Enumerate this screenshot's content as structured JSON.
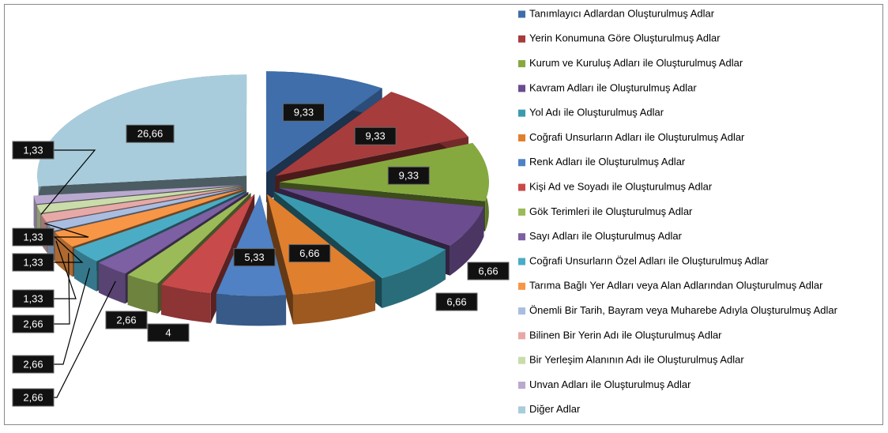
{
  "chart_data": {
    "type": "pie",
    "categories": [
      "Tanımlayıcı Adlardan Oluşturulmuş Adlar",
      "Yerin Konumuna Göre Oluşturulmuş Adlar",
      "Kurum ve Kuruluş Adları ile Oluşturulmuş Adlar",
      "Kavram Adları ile Oluşturulmuş Adlar",
      "Yol Adı ile Oluşturulmuş Adlar",
      "Coğrafi Unsurların Adları ile Oluşturulmuş Adlar",
      "Renk Adları ile Oluşturulmuş Adlar",
      "Kişi Ad ve Soyadı ile Oluşturulmuş Adlar",
      "Gök Terimleri ile Oluşturulmuş Adlar",
      "Sayı Adları ile Oluşturulmuş Adlar",
      "Coğrafi Unsurların Özel Adları ile Oluşturulmuş Adlar",
      "Tarıma Bağlı Yer Adları veya Alan Adlarından Oluşturulmuş Adlar",
      "Önemli Bir Tarih, Bayram veya Muharebe Adıyla Oluşturulmuş Adlar",
      "Bilinen Bir Yerin Adı ile Oluşturulmuş Adlar",
      "Bir Yerleşim Alanının Adı ile Oluşturulmuş Adlar",
      "Unvan Adları ile Oluşturulmuş Adlar",
      "Diğer Adlar"
    ],
    "values": [
      9.33,
      9.33,
      9.33,
      6.66,
      6.66,
      6.66,
      5.33,
      4,
      2.66,
      2.66,
      2.66,
      2.66,
      1.33,
      1.33,
      1.33,
      1.33,
      26.66
    ],
    "value_labels": [
      "9,33",
      "9,33",
      "9,33",
      "6,66",
      "6,66",
      "6,66",
      "5,33",
      "4",
      "2,66",
      "2,66",
      "2,66",
      "2,66",
      "1,33",
      "1,33",
      "1,33",
      "1,33",
      "26,66"
    ],
    "colors": [
      "#3f6eab",
      "#a63c3c",
      "#86a93f",
      "#6b4c8e",
      "#3a9bb0",
      "#e07f2e",
      "#4f81c4",
      "#c94a4a",
      "#9bbb59",
      "#7d5fa3",
      "#4bacc6",
      "#f79646",
      "#a9bde0",
      "#e6a9a8",
      "#c9dcaa",
      "#b9a9cf",
      "#a8ccdc"
    ],
    "legend": "right"
  }
}
